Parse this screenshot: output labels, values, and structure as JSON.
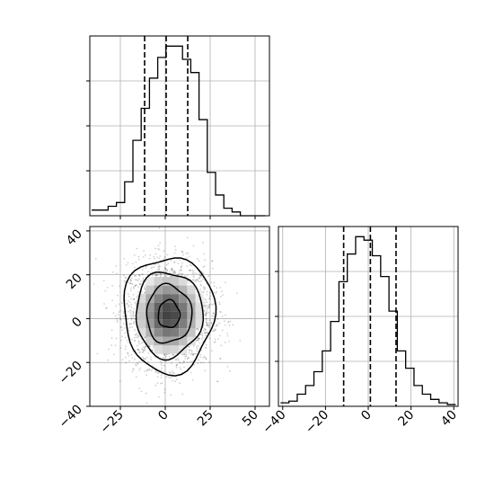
{
  "chart_data": [
    {
      "type": "histogram",
      "panel": "top-left marginal of x",
      "x_range": [
        -42,
        58
      ],
      "bin_width": 4.6,
      "bin_start": -41,
      "counts": [
        3,
        3,
        5,
        7,
        18,
        40,
        57,
        73,
        84,
        90,
        90,
        83,
        76,
        51,
        23,
        11,
        4,
        2,
        0,
        0,
        0
      ],
      "quantile_lines": [
        -11.5,
        0.5,
        12.5
      ],
      "xlabel": "",
      "ylabel": "",
      "tick_labels_shown": false,
      "grid": true
    },
    {
      "type": "heatmap",
      "panel": "bottom-left 2D density of x vs y",
      "x_range": [
        -42,
        58
      ],
      "y_range": [
        -40,
        42
      ],
      "x_ticks": [
        -25,
        0,
        25,
        50
      ],
      "x_tick_labels": [
        "−25",
        "0",
        "25",
        "50"
      ],
      "y_ticks": [
        -40,
        -20,
        0,
        20,
        40
      ],
      "y_tick_labels": [
        "−40",
        "−20",
        "0",
        "20",
        "40"
      ],
      "center": [
        2,
        2
      ],
      "spread_x": 12,
      "spread_y": 12,
      "contour_levels": 4,
      "grid": true
    },
    {
      "type": "histogram",
      "panel": "bottom-right marginal of y",
      "x_range": [
        -42,
        42
      ],
      "bin_width": 3.9,
      "bin_start": -41,
      "counts": [
        2,
        3,
        7,
        12,
        20,
        32,
        49,
        72,
        88,
        98,
        96,
        87,
        75,
        55,
        32,
        22,
        12,
        7,
        4,
        2,
        1
      ],
      "quantile_lines": [
        -11.5,
        1,
        13
      ],
      "x_ticks": [
        -40,
        -20,
        0,
        20,
        40
      ],
      "x_tick_labels": [
        "−40",
        "−20",
        "0",
        "20",
        "40"
      ],
      "xlabel": "",
      "ylabel": "",
      "grid": true
    }
  ],
  "colors": {
    "line": "#000000",
    "grid": "#b0b0b0",
    "scatter": "#000000"
  }
}
